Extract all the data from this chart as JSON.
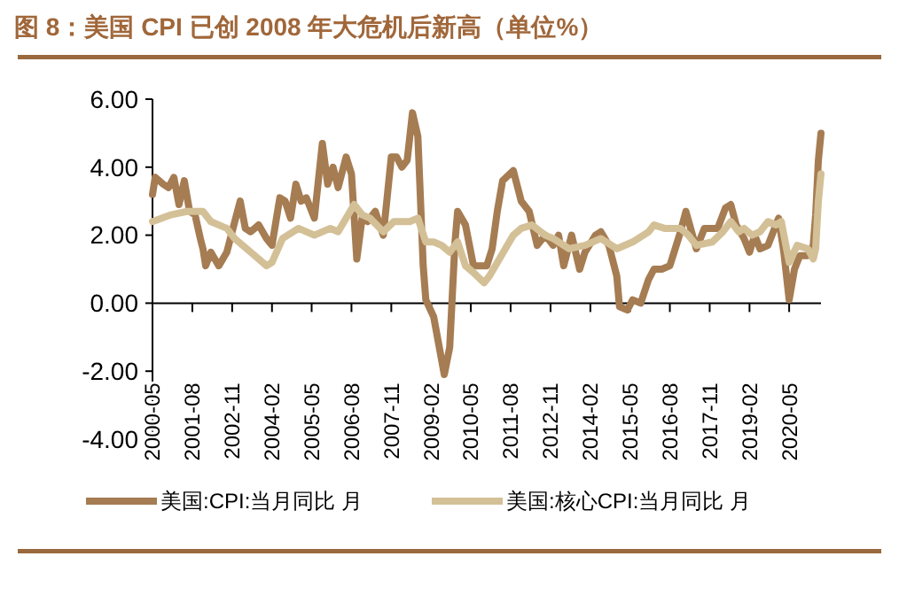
{
  "chart_data": {
    "type": "line",
    "title": "图 8：美国 CPI 已创 2008 年大危机后新高（单位%）",
    "xlim": [
      "2000-05",
      "2021-05"
    ],
    "xticks": [
      "2000-05",
      "2001-08",
      "2002-11",
      "2004-02",
      "2005-05",
      "2006-08",
      "2007-11",
      "2009-02",
      "2010-05",
      "2011-08",
      "2012-11",
      "2014-02",
      "2015-05",
      "2016-08",
      "2017-11",
      "2019-02",
      "2020-05"
    ],
    "ylim": [
      -4,
      6
    ],
    "yticks": [
      {
        "value": -4,
        "label": "-4.00"
      },
      {
        "value": -2,
        "label": "-2.00"
      },
      {
        "value": 0,
        "label": "0.00"
      },
      {
        "value": 2,
        "label": "2.00"
      },
      {
        "value": 4,
        "label": "4.00"
      },
      {
        "value": 6,
        "label": "6.00"
      }
    ],
    "legend": "bottom",
    "line_style": "solid",
    "marker": "none",
    "series": [
      {
        "name": "美国:CPI:当月同比 月",
        "color": "#a67c52",
        "x": [
          "2000-05",
          "2000-06",
          "2000-09",
          "2000-11",
          "2001-01",
          "2001-03",
          "2001-05",
          "2001-07",
          "2001-09",
          "2001-11",
          "2001-12",
          "2002-01",
          "2002-03",
          "2002-06",
          "2002-09",
          "2002-12",
          "2003-02",
          "2003-04",
          "2003-06",
          "2003-09",
          "2003-12",
          "2004-02",
          "2004-05",
          "2004-07",
          "2004-09",
          "2004-11",
          "2005-01",
          "2005-03",
          "2005-06",
          "2005-09",
          "2005-11",
          "2006-01",
          "2006-03",
          "2006-06",
          "2006-08",
          "2006-10",
          "2006-12",
          "2007-02",
          "2007-05",
          "2007-08",
          "2007-11",
          "2008-01",
          "2008-03",
          "2008-05",
          "2008-07",
          "2008-09",
          "2008-11",
          "2008-12",
          "2009-03",
          "2009-07",
          "2009-09",
          "2009-11",
          "2009-12",
          "2010-03",
          "2010-06",
          "2010-09",
          "2010-11",
          "2011-01",
          "2011-03",
          "2011-05",
          "2011-09",
          "2011-12",
          "2012-03",
          "2012-06",
          "2012-09",
          "2012-12",
          "2013-02",
          "2013-04",
          "2013-07",
          "2013-10",
          "2013-12",
          "2014-04",
          "2014-06",
          "2014-09",
          "2014-12",
          "2015-01",
          "2015-04",
          "2015-06",
          "2015-09",
          "2015-12",
          "2016-02",
          "2016-05",
          "2016-08",
          "2016-12",
          "2017-02",
          "2017-06",
          "2017-09",
          "2017-11",
          "2018-02",
          "2018-05",
          "2018-07",
          "2018-09",
          "2018-12",
          "2019-02",
          "2019-04",
          "2019-06",
          "2019-09",
          "2019-12",
          "2020-01",
          "2020-03",
          "2020-05",
          "2020-07",
          "2020-09",
          "2020-12",
          "2021-02",
          "2021-03",
          "2021-04",
          "2021-05"
        ],
        "values": [
          3.2,
          3.7,
          3.5,
          3.4,
          3.7,
          2.9,
          3.6,
          2.7,
          2.6,
          1.9,
          1.6,
          1.1,
          1.5,
          1.1,
          1.5,
          2.4,
          3.0,
          2.2,
          2.1,
          2.3,
          1.9,
          1.7,
          3.1,
          3.0,
          2.5,
          3.5,
          3.0,
          3.1,
          2.5,
          4.7,
          3.5,
          4.0,
          3.4,
          4.3,
          3.8,
          1.3,
          2.5,
          2.4,
          2.7,
          2.0,
          4.3,
          4.3,
          4.0,
          4.2,
          5.6,
          4.9,
          1.1,
          0.1,
          -0.4,
          -2.1,
          -1.3,
          1.8,
          2.7,
          2.3,
          1.1,
          1.1,
          1.1,
          1.6,
          2.7,
          3.6,
          3.9,
          3.0,
          2.7,
          1.7,
          2.0,
          1.7,
          2.0,
          1.1,
          2.0,
          1.0,
          1.5,
          2.0,
          2.1,
          1.7,
          0.8,
          -0.1,
          -0.2,
          0.1,
          0.0,
          0.7,
          1.0,
          1.0,
          1.1,
          2.1,
          2.7,
          1.6,
          2.2,
          2.2,
          2.2,
          2.8,
          2.9,
          2.3,
          1.9,
          1.5,
          2.0,
          1.6,
          1.7,
          2.3,
          2.5,
          1.5,
          0.1,
          1.0,
          1.4,
          1.4,
          1.7,
          2.6,
          4.2,
          5.0
        ]
      },
      {
        "name": "美国:核心CPI:当月同比 月",
        "color": "#d4c097",
        "x": [
          "2000-05",
          "2000-12",
          "2001-06",
          "2001-12",
          "2002-03",
          "2002-09",
          "2002-12",
          "2003-06",
          "2003-12",
          "2004-02",
          "2004-06",
          "2004-12",
          "2005-06",
          "2005-12",
          "2006-03",
          "2006-09",
          "2006-12",
          "2007-03",
          "2007-08",
          "2007-12",
          "2008-06",
          "2008-09",
          "2008-12",
          "2009-03",
          "2009-06",
          "2009-09",
          "2009-12",
          "2010-03",
          "2010-06",
          "2010-10",
          "2010-12",
          "2011-06",
          "2011-09",
          "2011-12",
          "2012-04",
          "2012-09",
          "2012-12",
          "2013-06",
          "2013-12",
          "2014-06",
          "2014-12",
          "2015-06",
          "2015-12",
          "2016-02",
          "2016-06",
          "2016-09",
          "2016-12",
          "2017-03",
          "2017-06",
          "2017-12",
          "2018-04",
          "2018-07",
          "2018-10",
          "2018-12",
          "2019-03",
          "2019-06",
          "2019-09",
          "2019-12",
          "2020-02",
          "2020-05",
          "2020-08",
          "2020-12",
          "2021-02",
          "2021-03",
          "2021-04",
          "2021-05"
        ],
        "values": [
          2.4,
          2.6,
          2.7,
          2.7,
          2.4,
          2.2,
          1.9,
          1.5,
          1.1,
          1.2,
          1.9,
          2.2,
          2.0,
          2.2,
          2.1,
          2.9,
          2.6,
          2.5,
          2.1,
          2.4,
          2.4,
          2.5,
          1.8,
          1.8,
          1.7,
          1.5,
          1.8,
          1.1,
          0.9,
          0.6,
          0.8,
          1.6,
          2.0,
          2.2,
          2.3,
          2.0,
          1.9,
          1.6,
          1.7,
          1.9,
          1.6,
          1.8,
          2.1,
          2.3,
          2.2,
          2.2,
          2.2,
          2.0,
          1.7,
          1.8,
          2.1,
          2.4,
          2.1,
          2.2,
          2.0,
          2.1,
          2.4,
          2.3,
          2.4,
          1.2,
          1.7,
          1.6,
          1.3,
          1.6,
          3.0,
          3.8
        ]
      }
    ]
  }
}
